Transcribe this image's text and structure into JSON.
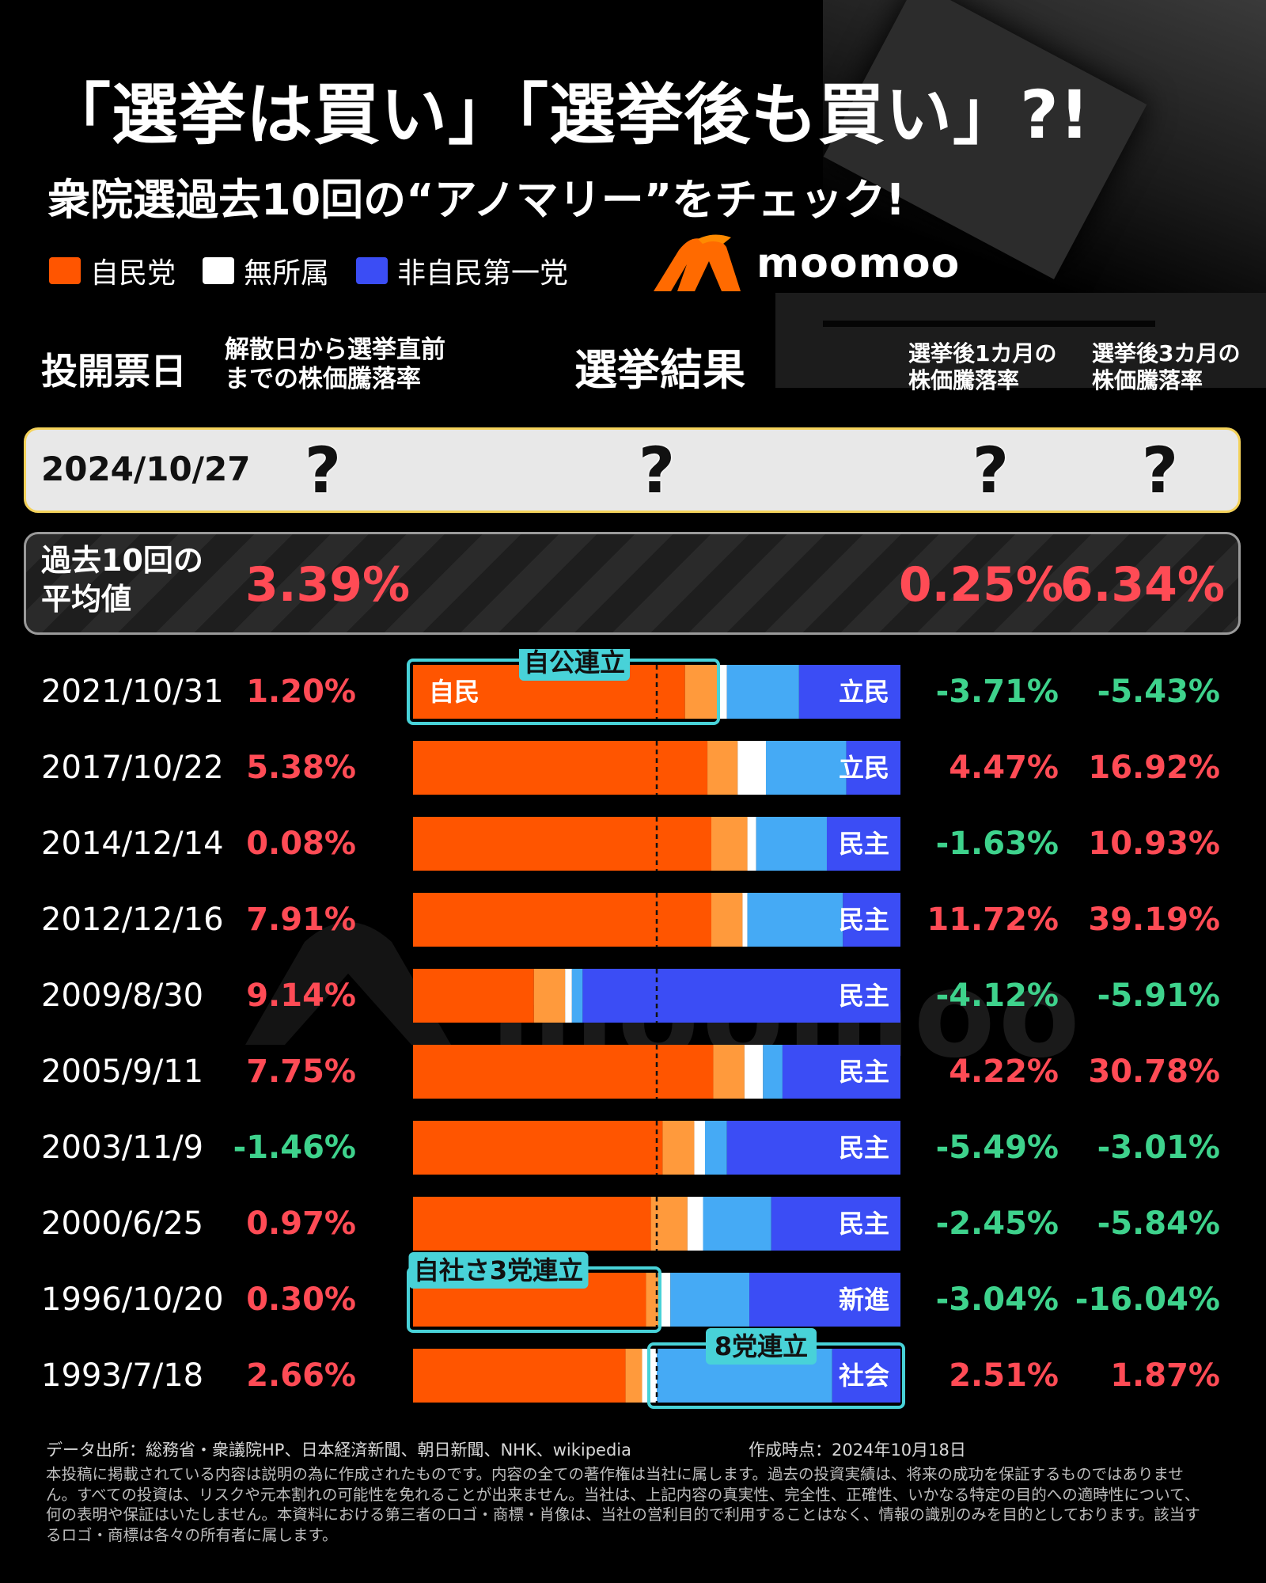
{
  "title": "「選挙は買い」「選挙後も買い」?!",
  "subtitle": "衆院選過去10回の“アノマリー”をチェック!",
  "brand": "moomoo",
  "watermark": "moomoo",
  "legend": [
    {
      "label": "自民党",
      "color": "#ff5500"
    },
    {
      "label": "無所属",
      "color": "#ffffff"
    },
    {
      "label": "非自民第一党",
      "color": "#3b4df5"
    }
  ],
  "headers": {
    "date": "投開票日",
    "pre_line1": "解散日から選挙直前",
    "pre_line2": "までの株価騰落率",
    "result": "選挙結果",
    "m1_line1": "選挙後1カ月の",
    "m1_line2": "株価騰落率",
    "m3_line1": "選挙後3カ月の",
    "m3_line2": "株価騰落率"
  },
  "current": {
    "date": "2024/10/27",
    "q1": "?",
    "q2": "?",
    "q3": "?",
    "q4": "?"
  },
  "average": {
    "label_line1": "過去10回の",
    "label_line2": "平均値",
    "pre": "3.39%",
    "m1": "0.25%",
    "m3": "6.34%"
  },
  "colors": {
    "ldp": "#ff5500",
    "ally": "#ff9a3c",
    "independent": "#ffffff",
    "other": "#45aaf5",
    "opposition": "#3b4df5",
    "positive": "#ff4b55",
    "negative": "#3ed28c",
    "coalition_frame": "#48d2d8"
  },
  "chart_data": {
    "type": "table",
    "columns": [
      "投開票日",
      "解散日から選挙直前までの株価騰落率",
      "選挙結果",
      "選挙後1カ月の株価騰落率",
      "選挙後3カ月の株価騰落率"
    ],
    "rows": [
      {
        "date": "2021/10/31",
        "pre": "1.20%",
        "m1": "-3.71%",
        "m3": "-5.43%",
        "result": {
          "ldp_label": "自民",
          "opposition_label": "立民",
          "coalition": "自公連立",
          "segments": [
            {
              "party": "ldp",
              "share": 0.558
            },
            {
              "party": "ally",
              "share": 0.066
            },
            {
              "party": "independent",
              "share": 0.02
            },
            {
              "party": "other",
              "share": 0.148
            },
            {
              "party": "opposition",
              "share": 0.208
            }
          ]
        }
      },
      {
        "date": "2017/10/22",
        "pre": "5.38%",
        "m1": "4.47%",
        "m3": "16.92%",
        "result": {
          "opposition_label": "立民",
          "segments": [
            {
              "party": "ldp",
              "share": 0.604
            },
            {
              "party": "ally",
              "share": 0.062
            },
            {
              "party": "independent",
              "share": 0.058
            },
            {
              "party": "other",
              "share": 0.165
            },
            {
              "party": "opposition",
              "share": 0.111
            }
          ]
        }
      },
      {
        "date": "2014/12/14",
        "pre": "0.08%",
        "m1": "-1.63%",
        "m3": "10.93%",
        "result": {
          "opposition_label": "民主",
          "segments": [
            {
              "party": "ldp",
              "share": 0.612
            },
            {
              "party": "ally",
              "share": 0.074
            },
            {
              "party": "independent",
              "share": 0.018
            },
            {
              "party": "other",
              "share": 0.145
            },
            {
              "party": "opposition",
              "share": 0.151
            }
          ]
        }
      },
      {
        "date": "2012/12/16",
        "pre": "7.91%",
        "m1": "11.72%",
        "m3": "39.19%",
        "result": {
          "opposition_label": "民主",
          "segments": [
            {
              "party": "ldp",
              "share": 0.612
            },
            {
              "party": "ally",
              "share": 0.064
            },
            {
              "party": "independent",
              "share": 0.01
            },
            {
              "party": "other",
              "share": 0.196
            },
            {
              "party": "opposition",
              "share": 0.118
            }
          ]
        }
      },
      {
        "date": "2009/8/30",
        "pre": "9.14%",
        "m1": "-4.12%",
        "m3": "-5.91%",
        "result": {
          "opposition_label": "民主",
          "segments": [
            {
              "party": "ldp",
              "share": 0.248
            },
            {
              "party": "ally",
              "share": 0.064
            },
            {
              "party": "independent",
              "share": 0.014
            },
            {
              "party": "other",
              "share": 0.022
            },
            {
              "party": "opposition",
              "share": 0.652
            }
          ]
        }
      },
      {
        "date": "2005/9/11",
        "pre": "7.75%",
        "m1": "4.22%",
        "m3": "30.78%",
        "result": {
          "opposition_label": "民主",
          "segments": [
            {
              "party": "ldp",
              "share": 0.616
            },
            {
              "party": "ally",
              "share": 0.064
            },
            {
              "party": "independent",
              "share": 0.038
            },
            {
              "party": "other",
              "share": 0.04
            },
            {
              "party": "opposition",
              "share": 0.242
            }
          ]
        }
      },
      {
        "date": "2003/11/9",
        "pre": "-1.46%",
        "m1": "-5.49%",
        "m3": "-3.01%",
        "result": {
          "opposition_label": "民主",
          "segments": [
            {
              "party": "ldp",
              "share": 0.512
            },
            {
              "party": "ally",
              "share": 0.065
            },
            {
              "party": "independent",
              "share": 0.022
            },
            {
              "party": "other",
              "share": 0.045
            },
            {
              "party": "opposition",
              "share": 0.356
            }
          ]
        }
      },
      {
        "date": "2000/6/25",
        "pre": "0.97%",
        "m1": "-2.45%",
        "m3": "-5.84%",
        "result": {
          "opposition_label": "民主",
          "segments": [
            {
              "party": "ldp",
              "share": 0.488
            },
            {
              "party": "ally",
              "share": 0.075
            },
            {
              "party": "independent",
              "share": 0.032
            },
            {
              "party": "other",
              "share": 0.14
            },
            {
              "party": "opposition",
              "share": 0.265
            }
          ]
        }
      },
      {
        "date": "1996/10/20",
        "pre": "0.30%",
        "m1": "-3.04%",
        "m3": "-16.04%",
        "result": {
          "opposition_label": "新進",
          "coalition": "自社さ3党連立",
          "segments": [
            {
              "party": "ldp",
              "share": 0.478
            },
            {
              "party": "ally",
              "share": 0.03
            },
            {
              "party": "independent",
              "share": 0.02
            },
            {
              "party": "other",
              "share": 0.162
            },
            {
              "party": "opposition",
              "share": 0.31
            }
          ]
        }
      },
      {
        "date": "1993/7/18",
        "pre": "2.66%",
        "m1": "2.51%",
        "m3": "1.87%",
        "result": {
          "opposition_label": "社会",
          "coalition": "8党連立",
          "segments": [
            {
              "party": "ldp",
              "share": 0.436
            },
            {
              "party": "ally",
              "share": 0.034
            },
            {
              "party": "independent",
              "share": 0.03
            },
            {
              "party": "other",
              "share": 0.36
            },
            {
              "party": "opposition",
              "share": 0.14
            }
          ]
        }
      }
    ]
  },
  "footer": {
    "source": "データ出所：総務省・衆議院HP、日本経済新聞、朝日新聞、NHK、wikipedia",
    "created": "作成時点：2024年10月18日",
    "disclaimer": "本投稿に掲載されている内容は説明の為に作成されたものです。内容の全ての著作権は当社に属します。過去の投資実績は、将来の成功を保証するものではありません。すべての投資は、リスクや元本割れの可能性を免れることが出来ません。当社は、上記内容の真実性、完全性、正確性、いかなる特定の目的への適時性について、何の表明や保証はいたしません。本資料における第三者のロゴ・商標・肖像は、当社の営利目的で利用することはなく、情報の識別のみを目的としております。該当するロゴ・商標は各々の所有者に属します。"
  }
}
